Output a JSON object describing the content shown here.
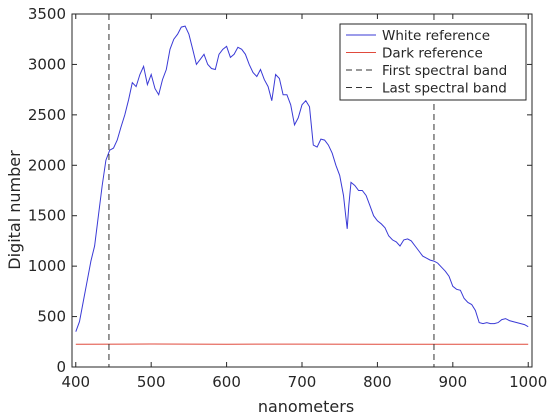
{
  "chart_data": {
    "type": "line",
    "title": "",
    "xlabel": "nanometers",
    "ylabel": "Digital number",
    "xlim": [
      395,
      1005
    ],
    "ylim": [
      0,
      3500
    ],
    "xticks": [
      400,
      500,
      600,
      700,
      800,
      900,
      1000
    ],
    "yticks": [
      0,
      500,
      1000,
      1500,
      2000,
      2500,
      3000,
      3500
    ],
    "xtick_labels": [
      "400",
      "500",
      "600",
      "700",
      "800",
      "900",
      "1000"
    ],
    "ytick_labels": [
      "0",
      "500",
      "1000",
      "1500",
      "2000",
      "2500",
      "3000",
      "3500"
    ],
    "grid": false,
    "legend_position": "top-right",
    "series": [
      {
        "name": "White reference",
        "color": "#3a3ad6",
        "style": "solid",
        "x": [
          400,
          405,
          410,
          415,
          420,
          425,
          430,
          435,
          440,
          445,
          450,
          455,
          460,
          465,
          470,
          475,
          480,
          485,
          490,
          495,
          500,
          505,
          510,
          515,
          520,
          525,
          530,
          535,
          540,
          545,
          550,
          555,
          560,
          565,
          570,
          575,
          580,
          585,
          590,
          595,
          600,
          605,
          610,
          615,
          620,
          625,
          630,
          635,
          640,
          645,
          650,
          655,
          660,
          665,
          670,
          675,
          680,
          685,
          690,
          695,
          700,
          705,
          710,
          715,
          720,
          725,
          730,
          735,
          740,
          745,
          750,
          755,
          758,
          760,
          762,
          765,
          770,
          775,
          780,
          785,
          790,
          795,
          800,
          805,
          810,
          815,
          820,
          825,
          830,
          835,
          840,
          845,
          850,
          855,
          860,
          865,
          870,
          875,
          880,
          885,
          890,
          895,
          900,
          905,
          910,
          915,
          920,
          925,
          930,
          935,
          940,
          945,
          950,
          955,
          960,
          965,
          970,
          975,
          980,
          985,
          990,
          995,
          1000
        ],
        "y": [
          350,
          450,
          650,
          850,
          1050,
          1200,
          1500,
          1800,
          2050,
          2150,
          2170,
          2250,
          2380,
          2500,
          2650,
          2820,
          2780,
          2900,
          2980,
          2800,
          2900,
          2760,
          2700,
          2850,
          2950,
          3150,
          3250,
          3300,
          3370,
          3380,
          3300,
          3150,
          3000,
          3050,
          3100,
          3000,
          2960,
          2950,
          3100,
          3150,
          3180,
          3070,
          3100,
          3170,
          3150,
          3100,
          3000,
          2920,
          2880,
          2950,
          2850,
          2780,
          2640,
          2900,
          2860,
          2700,
          2700,
          2600,
          2400,
          2470,
          2600,
          2640,
          2580,
          2200,
          2180,
          2260,
          2250,
          2200,
          2120,
          2000,
          1900,
          1700,
          1500,
          1370,
          1600,
          1830,
          1800,
          1750,
          1750,
          1700,
          1600,
          1500,
          1450,
          1420,
          1380,
          1300,
          1260,
          1240,
          1200,
          1260,
          1270,
          1250,
          1200,
          1150,
          1100,
          1080,
          1060,
          1050,
          1030,
          990,
          950,
          900,
          800,
          770,
          760,
          680,
          640,
          620,
          560,
          440,
          430,
          440,
          430,
          430,
          440,
          470,
          480,
          460,
          450,
          440,
          430,
          420,
          400
        ]
      },
      {
        "name": "Dark reference",
        "color": "#e04a3c",
        "style": "solid",
        "x": [
          400,
          500,
          600,
          700,
          800,
          900,
          1000
        ],
        "y": [
          225,
          228,
          226,
          227,
          225,
          226,
          225
        ]
      },
      {
        "name": "First spectral band",
        "color": "#333333",
        "style": "dashed",
        "vertical_x": 444
      },
      {
        "name": "Last spectral band",
        "color": "#333333",
        "style": "dashed",
        "vertical_x": 875
      }
    ]
  }
}
